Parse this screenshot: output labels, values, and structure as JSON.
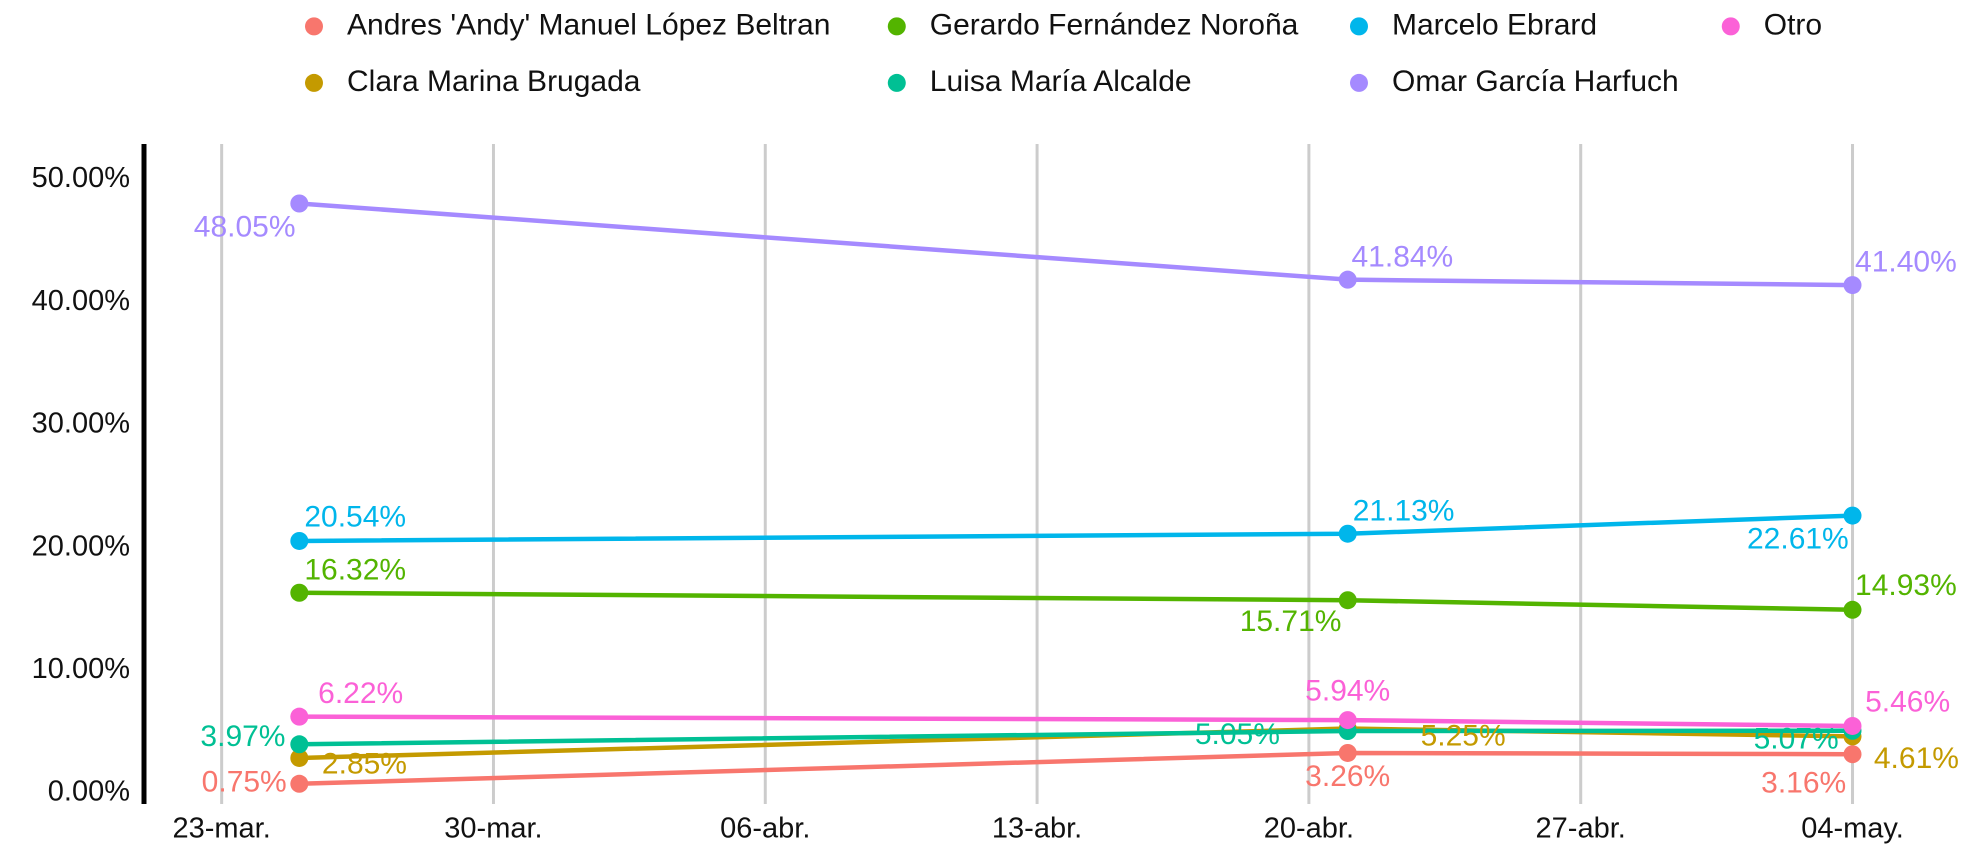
{
  "chart_data": {
    "type": "line",
    "x": [
      "03-25",
      "04-21",
      "05-04"
    ],
    "xlim": [
      "03-21",
      "05-07"
    ],
    "xticks": [
      {
        "value": "03-23",
        "label": "23-mar."
      },
      {
        "value": "03-30",
        "label": "30-mar."
      },
      {
        "value": "04-06",
        "label": "06-abr."
      },
      {
        "value": "04-13",
        "label": "13-abr."
      },
      {
        "value": "04-20",
        "label": "20-abr."
      },
      {
        "value": "04-27",
        "label": "27-abr."
      },
      {
        "value": "05-04",
        "label": "04-may."
      }
    ],
    "ylim": [
      -0.9,
      52.9
    ],
    "yticks": [
      {
        "value": 0,
        "label": "0.00%"
      },
      {
        "value": 10,
        "label": "10.00%"
      },
      {
        "value": 20,
        "label": "20.00%"
      },
      {
        "value": 30,
        "label": "30.00%"
      },
      {
        "value": 40,
        "label": "40.00%"
      },
      {
        "value": 50,
        "label": "50.00%"
      }
    ],
    "grid": "x",
    "legend": "top",
    "series": [
      {
        "name": "Andres 'Andy' Manuel López Beltran",
        "color": "#F8766D",
        "values": [
          0.75,
          3.26,
          3.16
        ],
        "value_labels": [
          "0.75%",
          "3.26%",
          "3.16%"
        ]
      },
      {
        "name": "Clara Marina Brugada",
        "color": "#C49A00",
        "values": [
          2.85,
          5.25,
          4.61
        ],
        "value_labels": [
          "2.85%",
          "5.25%",
          "4.61%"
        ]
      },
      {
        "name": "Gerardo Fernández Noroña",
        "color": "#53B400",
        "values": [
          16.32,
          15.71,
          14.93
        ],
        "value_labels": [
          "16.32%",
          "15.71%",
          "14.93%"
        ]
      },
      {
        "name": "Luisa María Alcalde",
        "color": "#00C094",
        "values": [
          3.97,
          5.05,
          5.07
        ],
        "value_labels": [
          "3.97%",
          "5.05%",
          "5.07%"
        ]
      },
      {
        "name": "Marcelo Ebrard",
        "color": "#00B6EB",
        "values": [
          20.54,
          21.13,
          22.61
        ],
        "value_labels": [
          "20.54%",
          "21.13%",
          "22.61%"
        ]
      },
      {
        "name": "Omar García Harfuch",
        "color": "#A58AFF",
        "values": [
          48.05,
          41.84,
          41.4
        ],
        "value_labels": [
          "48.05%",
          "41.84%",
          "41.40%"
        ]
      },
      {
        "name": "Otro",
        "color": "#FB61D7",
        "values": [
          6.22,
          5.94,
          5.46
        ],
        "value_labels": [
          "6.22%",
          "5.94%",
          "5.46%"
        ]
      }
    ]
  }
}
